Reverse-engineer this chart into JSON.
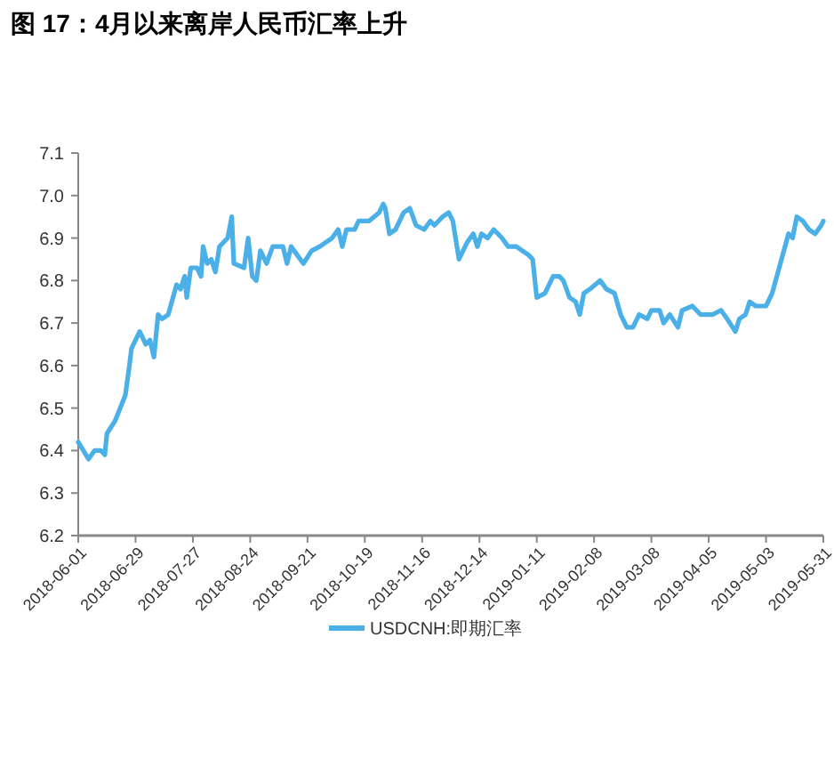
{
  "chart_data": {
    "type": "line",
    "title": "图 17：4月以来离岸人民币汇率上升",
    "x": [
      "2018-06-01",
      "2018-06-06",
      "2018-06-09",
      "2018-06-12",
      "2018-06-14",
      "2018-06-15",
      "2018-06-19",
      "2018-06-24",
      "2018-06-26",
      "2018-06-27",
      "2018-07-01",
      "2018-07-04",
      "2018-07-06",
      "2018-07-08",
      "2018-07-10",
      "2018-07-12",
      "2018-07-15",
      "2018-07-19",
      "2018-07-21",
      "2018-07-23",
      "2018-07-24",
      "2018-07-26",
      "2018-07-29",
      "2018-07-31",
      "2018-08-01",
      "2018-08-03",
      "2018-08-05",
      "2018-08-07",
      "2018-08-09",
      "2018-08-13",
      "2018-08-15",
      "2018-08-16",
      "2018-08-21",
      "2018-08-23",
      "2018-08-25",
      "2018-08-27",
      "2018-08-29",
      "2018-09-01",
      "2018-09-04",
      "2018-09-09",
      "2018-09-11",
      "2018-09-13",
      "2018-09-19",
      "2018-09-23",
      "2018-09-27",
      "2018-10-03",
      "2018-10-06",
      "2018-10-08",
      "2018-10-10",
      "2018-10-14",
      "2018-10-16",
      "2018-10-21",
      "2018-10-26",
      "2018-10-28",
      "2018-10-29",
      "2018-10-31",
      "2018-11-03",
      "2018-11-07",
      "2018-11-10",
      "2018-11-13",
      "2018-11-17",
      "2018-11-20",
      "2018-11-22",
      "2018-11-26",
      "2018-11-29",
      "2018-12-01",
      "2018-12-04",
      "2018-12-08",
      "2018-12-11",
      "2018-12-13",
      "2018-12-15",
      "2018-12-18",
      "2018-12-21",
      "2018-12-25",
      "2018-12-28",
      "2019-01-01",
      "2019-01-04",
      "2019-01-07",
      "2019-01-09",
      "2019-01-11",
      "2019-01-15",
      "2019-01-19",
      "2019-01-22",
      "2019-01-24",
      "2019-01-27",
      "2019-01-30",
      "2019-02-01",
      "2019-02-03",
      "2019-02-06",
      "2019-02-11",
      "2019-02-14",
      "2019-02-18",
      "2019-02-21",
      "2019-02-24",
      "2019-02-27",
      "2019-03-02",
      "2019-03-06",
      "2019-03-08",
      "2019-03-12",
      "2019-03-14",
      "2019-03-17",
      "2019-03-21",
      "2019-03-23",
      "2019-03-28",
      "2019-04-01",
      "2019-04-07",
      "2019-04-11",
      "2019-04-14",
      "2019-04-18",
      "2019-04-20",
      "2019-04-23",
      "2019-04-25",
      "2019-04-28",
      "2019-05-03",
      "2019-05-06",
      "2019-05-10",
      "2019-05-14",
      "2019-05-16",
      "2019-05-18",
      "2019-05-21",
      "2019-05-24",
      "2019-05-27",
      "2019-05-30",
      "2019-05-31"
    ],
    "series": [
      {
        "name": "USDCNH:即期汇率",
        "color": "#4bafe8",
        "values": [
          6.42,
          6.38,
          6.4,
          6.4,
          6.39,
          6.44,
          6.47,
          6.53,
          6.6,
          6.64,
          6.68,
          6.65,
          6.66,
          6.62,
          6.72,
          6.71,
          6.72,
          6.79,
          6.78,
          6.81,
          6.76,
          6.83,
          6.83,
          6.81,
          6.88,
          6.84,
          6.85,
          6.82,
          6.88,
          6.9,
          6.95,
          6.84,
          6.83,
          6.9,
          6.81,
          6.8,
          6.87,
          6.84,
          6.88,
          6.88,
          6.84,
          6.88,
          6.84,
          6.87,
          6.88,
          6.9,
          6.92,
          6.88,
          6.92,
          6.92,
          6.94,
          6.94,
          6.96,
          6.98,
          6.97,
          6.91,
          6.92,
          6.96,
          6.97,
          6.93,
          6.92,
          6.94,
          6.93,
          6.95,
          6.96,
          6.94,
          6.85,
          6.89,
          6.91,
          6.88,
          6.91,
          6.9,
          6.92,
          6.9,
          6.88,
          6.88,
          6.87,
          6.86,
          6.85,
          6.76,
          6.77,
          6.81,
          6.81,
          6.8,
          6.76,
          6.75,
          6.72,
          6.77,
          6.78,
          6.8,
          6.78,
          6.77,
          6.72,
          6.69,
          6.69,
          6.72,
          6.71,
          6.73,
          6.73,
          6.7,
          6.72,
          6.69,
          6.73,
          6.74,
          6.72,
          6.72,
          6.73,
          6.71,
          6.68,
          6.71,
          6.72,
          6.75,
          6.74,
          6.74,
          6.77,
          6.84,
          6.91,
          6.9,
          6.95,
          6.94,
          6.92,
          6.91,
          6.93,
          6.94
        ]
      }
    ],
    "xlim": [
      "2018-06-01",
      "2019-05-31"
    ],
    "xticks": [
      "2018-06-01",
      "2018-06-29",
      "2018-07-27",
      "2018-08-24",
      "2018-09-21",
      "2018-10-19",
      "2018-11-16",
      "2018-12-14",
      "2019-01-11",
      "2019-02-08",
      "2019-03-08",
      "2019-04-05",
      "2019-05-03",
      "2019-05-31"
    ],
    "ylim": [
      6.2,
      7.1
    ],
    "yticks": [
      {
        "value": 6.2,
        "label": "6.2"
      },
      {
        "value": 6.3,
        "label": "6.3"
      },
      {
        "value": 6.4,
        "label": "6.4"
      },
      {
        "value": 6.5,
        "label": "6.5"
      },
      {
        "value": 6.6,
        "label": "6.6"
      },
      {
        "value": 6.7,
        "label": "6.7"
      },
      {
        "value": 6.8,
        "label": "6.8"
      },
      {
        "value": 6.9,
        "label": "6.9"
      },
      {
        "value": 7.0,
        "label": "7.0"
      },
      {
        "value": 7.1,
        "label": "7.1"
      }
    ],
    "legend": "bottom",
    "grid": false,
    "marker": "none",
    "line_style": "solid"
  }
}
